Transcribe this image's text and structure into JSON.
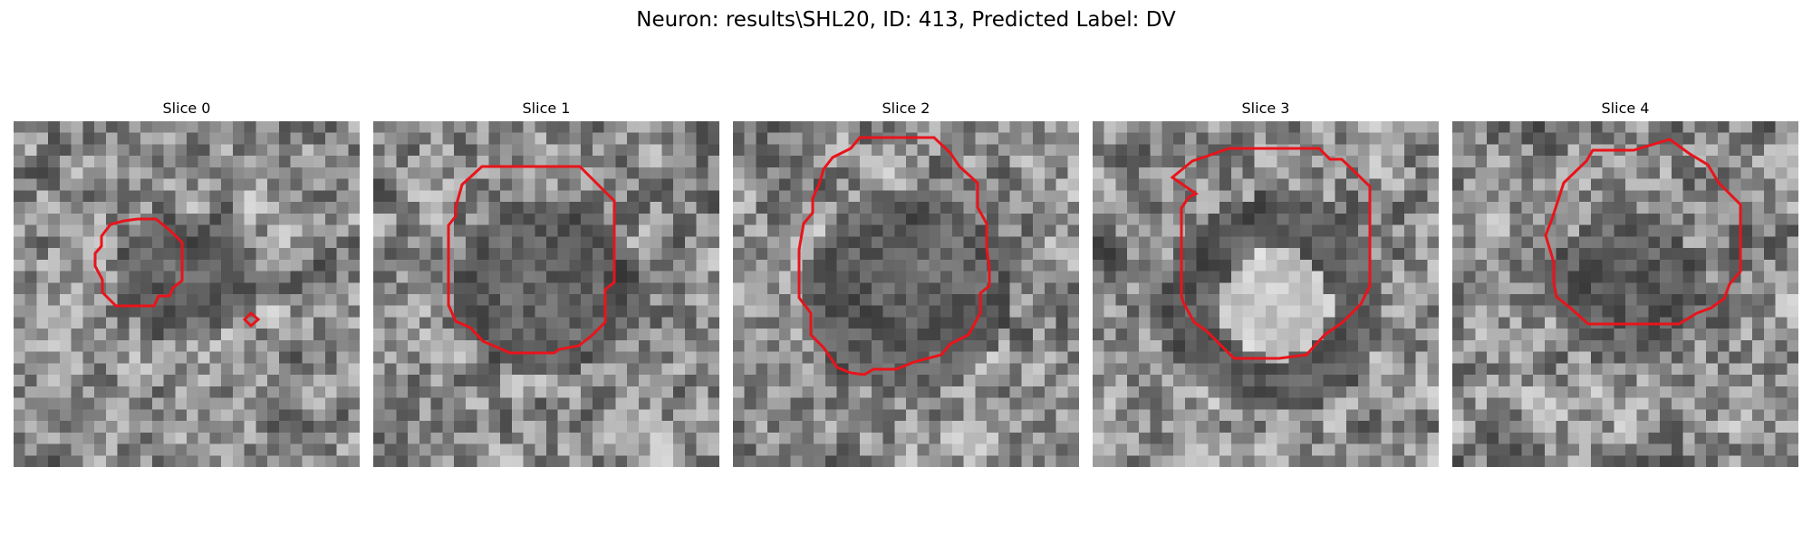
{
  "title": "Neuron: results\\SHL20, ID: 413, Predicted Label: DV",
  "panels": [
    {
      "label": "Slice 0"
    },
    {
      "label": "Slice 1"
    },
    {
      "label": "Slice 2"
    },
    {
      "label": "Slice 3"
    },
    {
      "label": "Slice 4"
    }
  ],
  "colors": {
    "contour": "#e8141b",
    "background": "#ffffff"
  },
  "image_style": "grayscale pixelated microscopy slice"
}
